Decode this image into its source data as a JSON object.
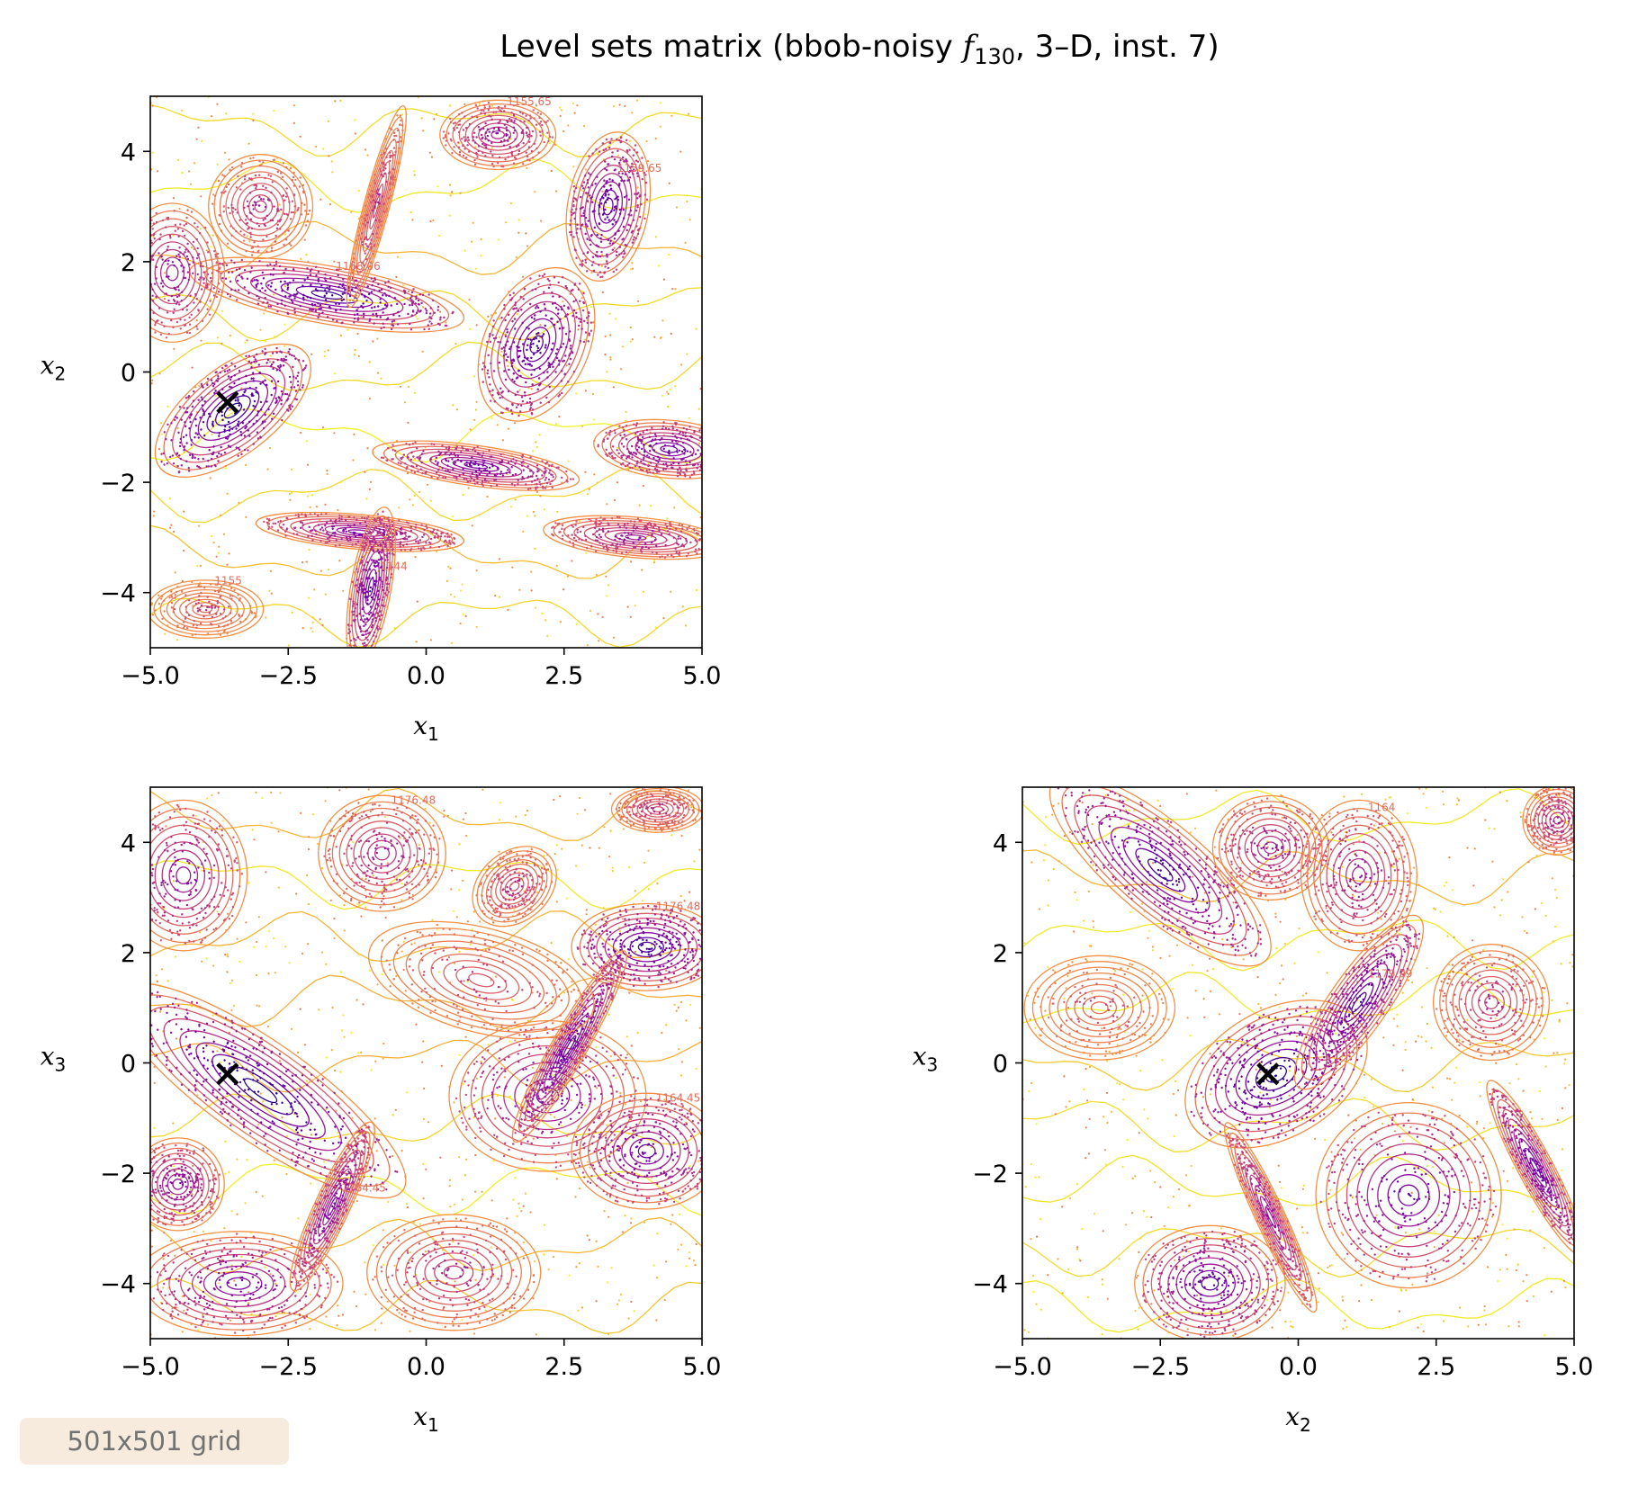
{
  "chart_data": {
    "type": "contour",
    "title": "Level sets matrix (bbob-noisy f130, 3–D, inst. 7)",
    "title_parts": {
      "before": "Level sets matrix (bbob-noisy ",
      "f": "f",
      "sub": "130",
      "after": ", 3–D, inst. 7)"
    },
    "colormap": "plasma",
    "optimum": [
      -3.6,
      -0.55,
      -0.2
    ],
    "panels": [
      {
        "id": "x1-x2",
        "xlabel": "x1",
        "ylabel": "x2",
        "xlim": [
          -5,
          5
        ],
        "ylim": [
          -5,
          5
        ],
        "xticks": [
          "−5.0",
          "−2.5",
          "0.0",
          "2.5",
          "5.0"
        ],
        "yticks": [
          "4",
          "2",
          "0",
          "−2",
          "−4"
        ],
        "marker": [
          -3.6,
          -0.55
        ],
        "contour_labels": [
          "1168.06",
          "1159.65",
          "1144",
          "1155.65",
          "1155"
        ],
        "basins": [
          {
            "cx": -3.5,
            "cy": -0.7,
            "rx": 1.6,
            "ry": 0.75,
            "angle": 38,
            "depth": 1.0
          },
          {
            "cx": -1.8,
            "cy": 1.4,
            "rx": 2.4,
            "ry": 0.5,
            "angle": -10,
            "depth": 0.9
          },
          {
            "cx": -4.6,
            "cy": 1.8,
            "rx": 0.9,
            "ry": 1.2,
            "angle": 0,
            "depth": 0.55
          },
          {
            "cx": 2.0,
            "cy": 0.5,
            "rx": 1.4,
            "ry": 0.9,
            "angle": 65,
            "depth": 0.85
          },
          {
            "cx": 3.3,
            "cy": 3.0,
            "rx": 1.3,
            "ry": 0.7,
            "angle": 80,
            "depth": 0.8
          },
          {
            "cx": 0.9,
            "cy": -1.7,
            "rx": 1.8,
            "ry": 0.35,
            "angle": -8,
            "depth": 0.7
          },
          {
            "cx": -1.2,
            "cy": -2.9,
            "rx": 1.8,
            "ry": 0.3,
            "angle": -5,
            "depth": 0.65
          },
          {
            "cx": -1.0,
            "cy": -3.9,
            "rx": 1.4,
            "ry": 0.35,
            "angle": 80,
            "depth": 0.75
          },
          {
            "cx": 4.4,
            "cy": -1.4,
            "rx": 1.3,
            "ry": 0.5,
            "angle": -5,
            "depth": 0.75
          },
          {
            "cx": 3.8,
            "cy": -3.0,
            "rx": 1.6,
            "ry": 0.35,
            "angle": -5,
            "depth": 0.55
          },
          {
            "cx": 1.3,
            "cy": 4.3,
            "rx": 1.0,
            "ry": 0.6,
            "angle": 0,
            "depth": 0.5
          },
          {
            "cx": -3.0,
            "cy": 3.0,
            "rx": 0.9,
            "ry": 0.9,
            "angle": 0,
            "depth": 0.35
          },
          {
            "cx": -0.9,
            "cy": 3.0,
            "rx": 1.8,
            "ry": 0.22,
            "angle": 75,
            "depth": 0.3
          },
          {
            "cx": -4.0,
            "cy": -4.3,
            "rx": 1.0,
            "ry": 0.5,
            "angle": 0,
            "depth": 0.15
          }
        ]
      },
      {
        "id": "x1-x3",
        "xlabel": "x1",
        "ylabel": "x3",
        "xlim": [
          -5,
          5
        ],
        "ylim": [
          -5,
          5
        ],
        "xticks": [
          "−5.0",
          "−2.5",
          "0.0",
          "2.5",
          "5.0"
        ],
        "yticks": [
          "4",
          "2",
          "0",
          "−2",
          "−4"
        ],
        "marker": [
          -3.6,
          -0.2
        ],
        "contour_labels": [
          "1176.48",
          "1164.45",
          "1164.45",
          "1176.48"
        ],
        "basins": [
          {
            "cx": -3.0,
            "cy": -0.5,
            "rx": 3.0,
            "ry": 0.85,
            "angle": -35,
            "depth": 1.0
          },
          {
            "cx": 4.0,
            "cy": 2.1,
            "rx": 1.3,
            "ry": 0.75,
            "angle": 0,
            "depth": 0.9
          },
          {
            "cx": 2.2,
            "cy": -0.6,
            "rx": 1.7,
            "ry": 1.3,
            "angle": 0,
            "depth": 0.7
          },
          {
            "cx": 2.6,
            "cy": 0.3,
            "rx": 1.9,
            "ry": 0.3,
            "angle": 60,
            "depth": 0.8
          },
          {
            "cx": 4.0,
            "cy": -1.6,
            "rx": 1.3,
            "ry": 1.0,
            "angle": 0,
            "depth": 0.75
          },
          {
            "cx": -4.4,
            "cy": 3.4,
            "rx": 1.1,
            "ry": 1.3,
            "angle": 0,
            "depth": 0.6
          },
          {
            "cx": -3.4,
            "cy": -4.0,
            "rx": 1.8,
            "ry": 0.9,
            "angle": 0,
            "depth": 0.7
          },
          {
            "cx": -1.7,
            "cy": -2.6,
            "rx": 1.6,
            "ry": 0.3,
            "angle": 65,
            "depth": 0.65
          },
          {
            "cx": -4.5,
            "cy": -2.2,
            "rx": 0.8,
            "ry": 0.8,
            "angle": 0,
            "depth": 0.6
          },
          {
            "cx": 0.5,
            "cy": -3.8,
            "rx": 1.5,
            "ry": 1.0,
            "angle": 0,
            "depth": 0.4
          },
          {
            "cx": -0.8,
            "cy": 3.8,
            "rx": 1.1,
            "ry": 1.0,
            "angle": 0,
            "depth": 0.45
          },
          {
            "cx": 1.6,
            "cy": 3.2,
            "rx": 0.8,
            "ry": 0.6,
            "angle": 40,
            "depth": 0.3
          },
          {
            "cx": 4.2,
            "cy": 4.6,
            "rx": 0.8,
            "ry": 0.4,
            "angle": 0,
            "depth": 0.3
          },
          {
            "cx": 1.0,
            "cy": 1.5,
            "rx": 2.0,
            "ry": 0.9,
            "angle": -15,
            "depth": 0.25
          }
        ]
      },
      {
        "id": "x2-x3",
        "xlabel": "x2",
        "ylabel": "x3",
        "xlim": [
          -5,
          5
        ],
        "ylim": [
          -5,
          5
        ],
        "xticks": [
          "−5.0",
          "−2.5",
          "0.0",
          "2.5",
          "5.0"
        ],
        "yticks": [
          "4",
          "2",
          "0",
          "−2",
          "−4"
        ],
        "marker": [
          -0.55,
          -0.2
        ],
        "contour_labels": [
          "1179.99",
          "1164"
        ],
        "basins": [
          {
            "cx": -0.4,
            "cy": -0.2,
            "rx": 1.7,
            "ry": 1.1,
            "angle": 30,
            "depth": 1.0
          },
          {
            "cx": 1.1,
            "cy": 1.1,
            "rx": 1.8,
            "ry": 0.5,
            "angle": 55,
            "depth": 0.85
          },
          {
            "cx": -2.5,
            "cy": 3.5,
            "rx": 2.4,
            "ry": 0.8,
            "angle": -40,
            "depth": 0.9
          },
          {
            "cx": -0.5,
            "cy": 3.9,
            "rx": 1.0,
            "ry": 0.9,
            "angle": 0,
            "depth": 0.5
          },
          {
            "cx": 1.1,
            "cy": 3.4,
            "rx": 1.0,
            "ry": 1.3,
            "angle": 0,
            "depth": 0.5
          },
          {
            "cx": 2.0,
            "cy": -2.4,
            "rx": 1.6,
            "ry": 1.6,
            "angle": 0,
            "depth": 0.75
          },
          {
            "cx": -1.6,
            "cy": -4.0,
            "rx": 1.3,
            "ry": 1.0,
            "angle": 0,
            "depth": 0.8
          },
          {
            "cx": 4.3,
            "cy": -1.9,
            "rx": 1.7,
            "ry": 0.3,
            "angle": -62,
            "depth": 0.75
          },
          {
            "cx": -0.5,
            "cy": -2.8,
            "rx": 1.8,
            "ry": 0.25,
            "angle": -65,
            "depth": 0.55
          },
          {
            "cx": 3.5,
            "cy": 1.1,
            "rx": 1.0,
            "ry": 1.0,
            "angle": 0,
            "depth": 0.35
          },
          {
            "cx": 4.7,
            "cy": 4.4,
            "rx": 0.6,
            "ry": 0.6,
            "angle": 0,
            "depth": 0.4
          },
          {
            "cx": -3.6,
            "cy": 1.0,
            "rx": 1.3,
            "ry": 0.9,
            "angle": 0,
            "depth": 0.15
          }
        ]
      }
    ]
  },
  "annotation": {
    "grid_note": "501x501 grid"
  },
  "colors": {
    "deep": "#0d0887",
    "mid": "#9c179e",
    "light": "#ed7953",
    "high": "#f0f921",
    "marker": "#000000"
  }
}
